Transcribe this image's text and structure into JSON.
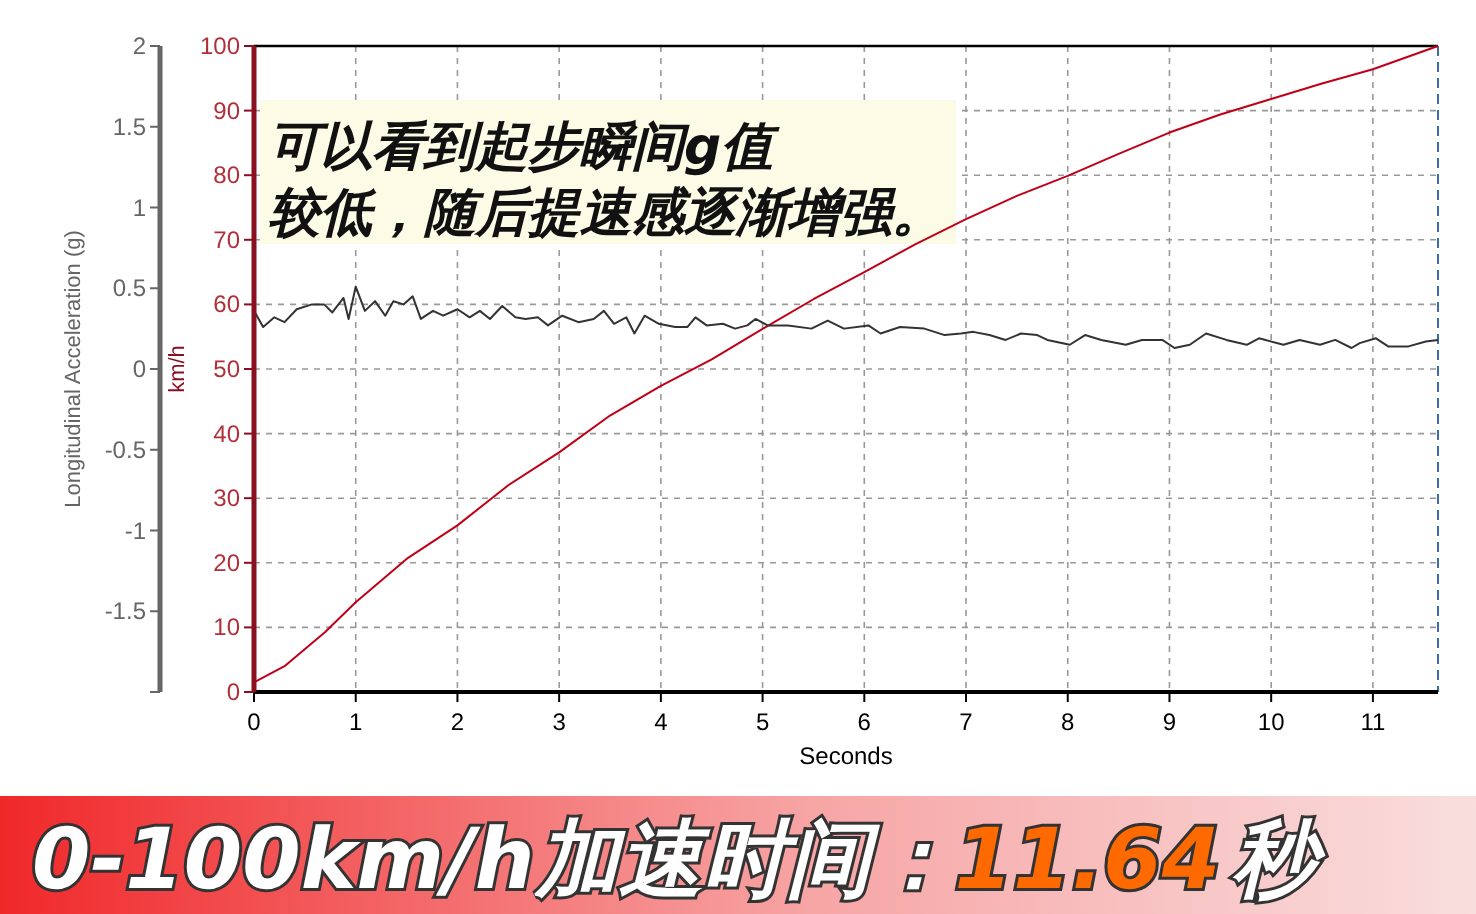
{
  "chart_data": {
    "type": "line",
    "xlabel": "Seconds",
    "ylabel": "km/h",
    "y2label": "Longitudinal Acceleration (g)",
    "annotations": [
      "可以看到起步瞬间g值",
      "较低，随后提速感逐渐增强。",
      "0-100km/h加速时间：",
      "11.64",
      "秒"
    ],
    "xlim": [
      0,
      11.64
    ],
    "xticks": [
      0,
      1,
      2,
      3,
      4,
      5,
      6,
      7,
      8,
      9,
      10,
      11
    ],
    "ylim": [
      0,
      100
    ],
    "yticks": [
      0,
      10,
      20,
      30,
      40,
      50,
      60,
      70,
      80,
      90,
      100
    ],
    "y2lim": [
      -2,
      2
    ],
    "y2ticks": [
      {
        "value": -2,
        "label": null
      },
      -1.5,
      -1,
      -0.5,
      0,
      0.5,
      1,
      1.5,
      2
    ],
    "grid": true,
    "marker": "none",
    "line_style": "solid",
    "series": [
      {
        "color": "#c00018",
        "x": [
          0,
          0.3,
          0.7,
          1.0,
          1.5,
          2.0,
          2.5,
          3.0,
          3.5,
          4.0,
          4.5,
          5.0,
          5.5,
          6.0,
          6.5,
          7.0,
          7.5,
          8.0,
          8.5,
          9.0,
          9.5,
          10.0,
          10.5,
          11.0,
          11.64
        ],
        "values": [
          1.5,
          4,
          9.3,
          13.9,
          20.6,
          25.8,
          32,
          37.1,
          42.8,
          47.4,
          51.5,
          56.2,
          60.8,
          65,
          69.3,
          73.2,
          76.8,
          79.9,
          83.3,
          86.6,
          89.4,
          91.8,
          94.2,
          96.4,
          100
        ]
      },
      {
        "color": "#333333",
        "axis": "y2",
        "x": [
          0,
          0.09,
          0.2,
          0.3,
          0.42,
          0.57,
          0.69,
          0.77,
          0.88,
          0.93,
          1.0,
          1.09,
          1.19,
          1.29,
          1.37,
          1.47,
          1.56,
          1.64,
          1.76,
          1.86,
          2.0,
          2.12,
          2.22,
          2.32,
          2.44,
          2.57,
          2.67,
          2.79,
          2.89,
          3.03,
          3.19,
          3.34,
          3.44,
          3.54,
          3.66,
          3.74,
          3.84,
          3.98,
          4.14,
          4.26,
          4.34,
          4.45,
          4.61,
          4.73,
          4.85,
          4.93,
          5.05,
          5.25,
          5.48,
          5.64,
          5.8,
          6.04,
          6.16,
          6.35,
          6.59,
          6.79,
          6.95,
          7.07,
          7.23,
          7.39,
          7.54,
          7.7,
          7.8,
          8.02,
          8.17,
          8.33,
          8.57,
          8.73,
          8.93,
          9.05,
          9.2,
          9.36,
          9.56,
          9.76,
          9.88,
          10.12,
          10.28,
          10.48,
          10.63,
          10.79,
          10.87,
          11.03,
          11.15,
          11.35,
          11.52,
          11.64
        ],
        "values": [
          0.36,
          0.26,
          0.32,
          0.29,
          0.37,
          0.4,
          0.4,
          0.35,
          0.44,
          0.31,
          0.51,
          0.36,
          0.42,
          0.33,
          0.42,
          0.4,
          0.45,
          0.31,
          0.36,
          0.33,
          0.37,
          0.32,
          0.36,
          0.31,
          0.39,
          0.32,
          0.31,
          0.32,
          0.27,
          0.33,
          0.29,
          0.31,
          0.36,
          0.28,
          0.32,
          0.22,
          0.33,
          0.28,
          0.26,
          0.26,
          0.32,
          0.27,
          0.28,
          0.25,
          0.27,
          0.31,
          0.27,
          0.27,
          0.25,
          0.3,
          0.25,
          0.27,
          0.22,
          0.26,
          0.25,
          0.21,
          0.22,
          0.23,
          0.21,
          0.18,
          0.22,
          0.21,
          0.18,
          0.15,
          0.21,
          0.18,
          0.15,
          0.18,
          0.18,
          0.13,
          0.15,
          0.22,
          0.18,
          0.15,
          0.19,
          0.15,
          0.18,
          0.15,
          0.18,
          0.13,
          0.16,
          0.19,
          0.14,
          0.14,
          0.17,
          0.18
        ]
      }
    ]
  }
}
